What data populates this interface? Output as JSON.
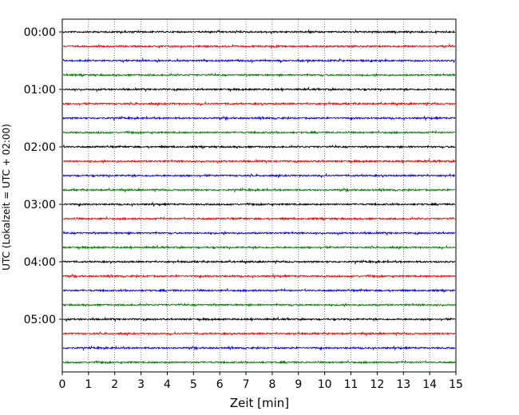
{
  "chart_data": {
    "type": "line",
    "title": "",
    "xlabel": "Zeit  [min]",
    "ylabel": "UTC (Lokalzeit = UTC + 02:00)",
    "xlim": [
      0,
      15
    ],
    "x_ticks": [
      "0",
      "1",
      "2",
      "3",
      "4",
      "5",
      "6",
      "7",
      "8",
      "9",
      "10",
      "11",
      "12",
      "13",
      "14",
      "15"
    ],
    "y_tick_labels": [
      "00:00",
      "01:00",
      "02:00",
      "03:00",
      "04:00",
      "05:00"
    ],
    "vertical_grid": true,
    "grid_style": "dotted",
    "trace_interval_minutes": 15,
    "trace_count": 24,
    "trace_color_cycle": [
      "#000000",
      "#ff0000",
      "#0000ff",
      "#008000"
    ]
  }
}
